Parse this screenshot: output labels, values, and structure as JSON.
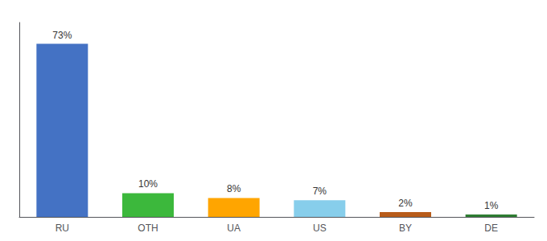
{
  "chart_data": {
    "type": "bar",
    "categories": [
      "RU",
      "OTH",
      "UA",
      "US",
      "BY",
      "DE"
    ],
    "values": [
      73,
      10,
      8,
      7,
      2,
      1
    ],
    "value_labels": [
      "73%",
      "10%",
      "8%",
      "7%",
      "2%",
      "1%"
    ],
    "colors": [
      "#4472C4",
      "#3CB83C",
      "#FFA500",
      "#87CEEB",
      "#B85C1A",
      "#2E7D32"
    ],
    "ylim": [
      0,
      82
    ],
    "data_labels": true,
    "tick_labels": "x",
    "grid": false
  }
}
